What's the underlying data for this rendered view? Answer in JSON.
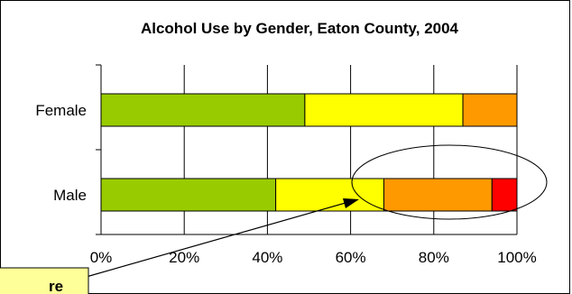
{
  "chart_data": {
    "type": "bar",
    "orientation": "horizontal",
    "stacked": true,
    "percent": true,
    "title": "Alcohol Use by Gender, Eaton County, 2004",
    "categories": [
      "Female",
      "Male"
    ],
    "series": [
      {
        "color": "#99cc00",
        "values": [
          49,
          42
        ]
      },
      {
        "color": "#ffff00",
        "values": [
          38,
          26
        ]
      },
      {
        "color": "#ff9900",
        "values": [
          13,
          26
        ]
      },
      {
        "color": "#ff0000",
        "values": [
          0,
          6
        ]
      }
    ],
    "xlim": [
      0,
      100
    ],
    "x_ticks": [
      "0%",
      "20%",
      "40%",
      "60%",
      "80%",
      "100%"
    ],
    "grid": true,
    "legend": "none",
    "annotation": {
      "callout_text": "re",
      "callout_color": "#ffff99"
    }
  }
}
